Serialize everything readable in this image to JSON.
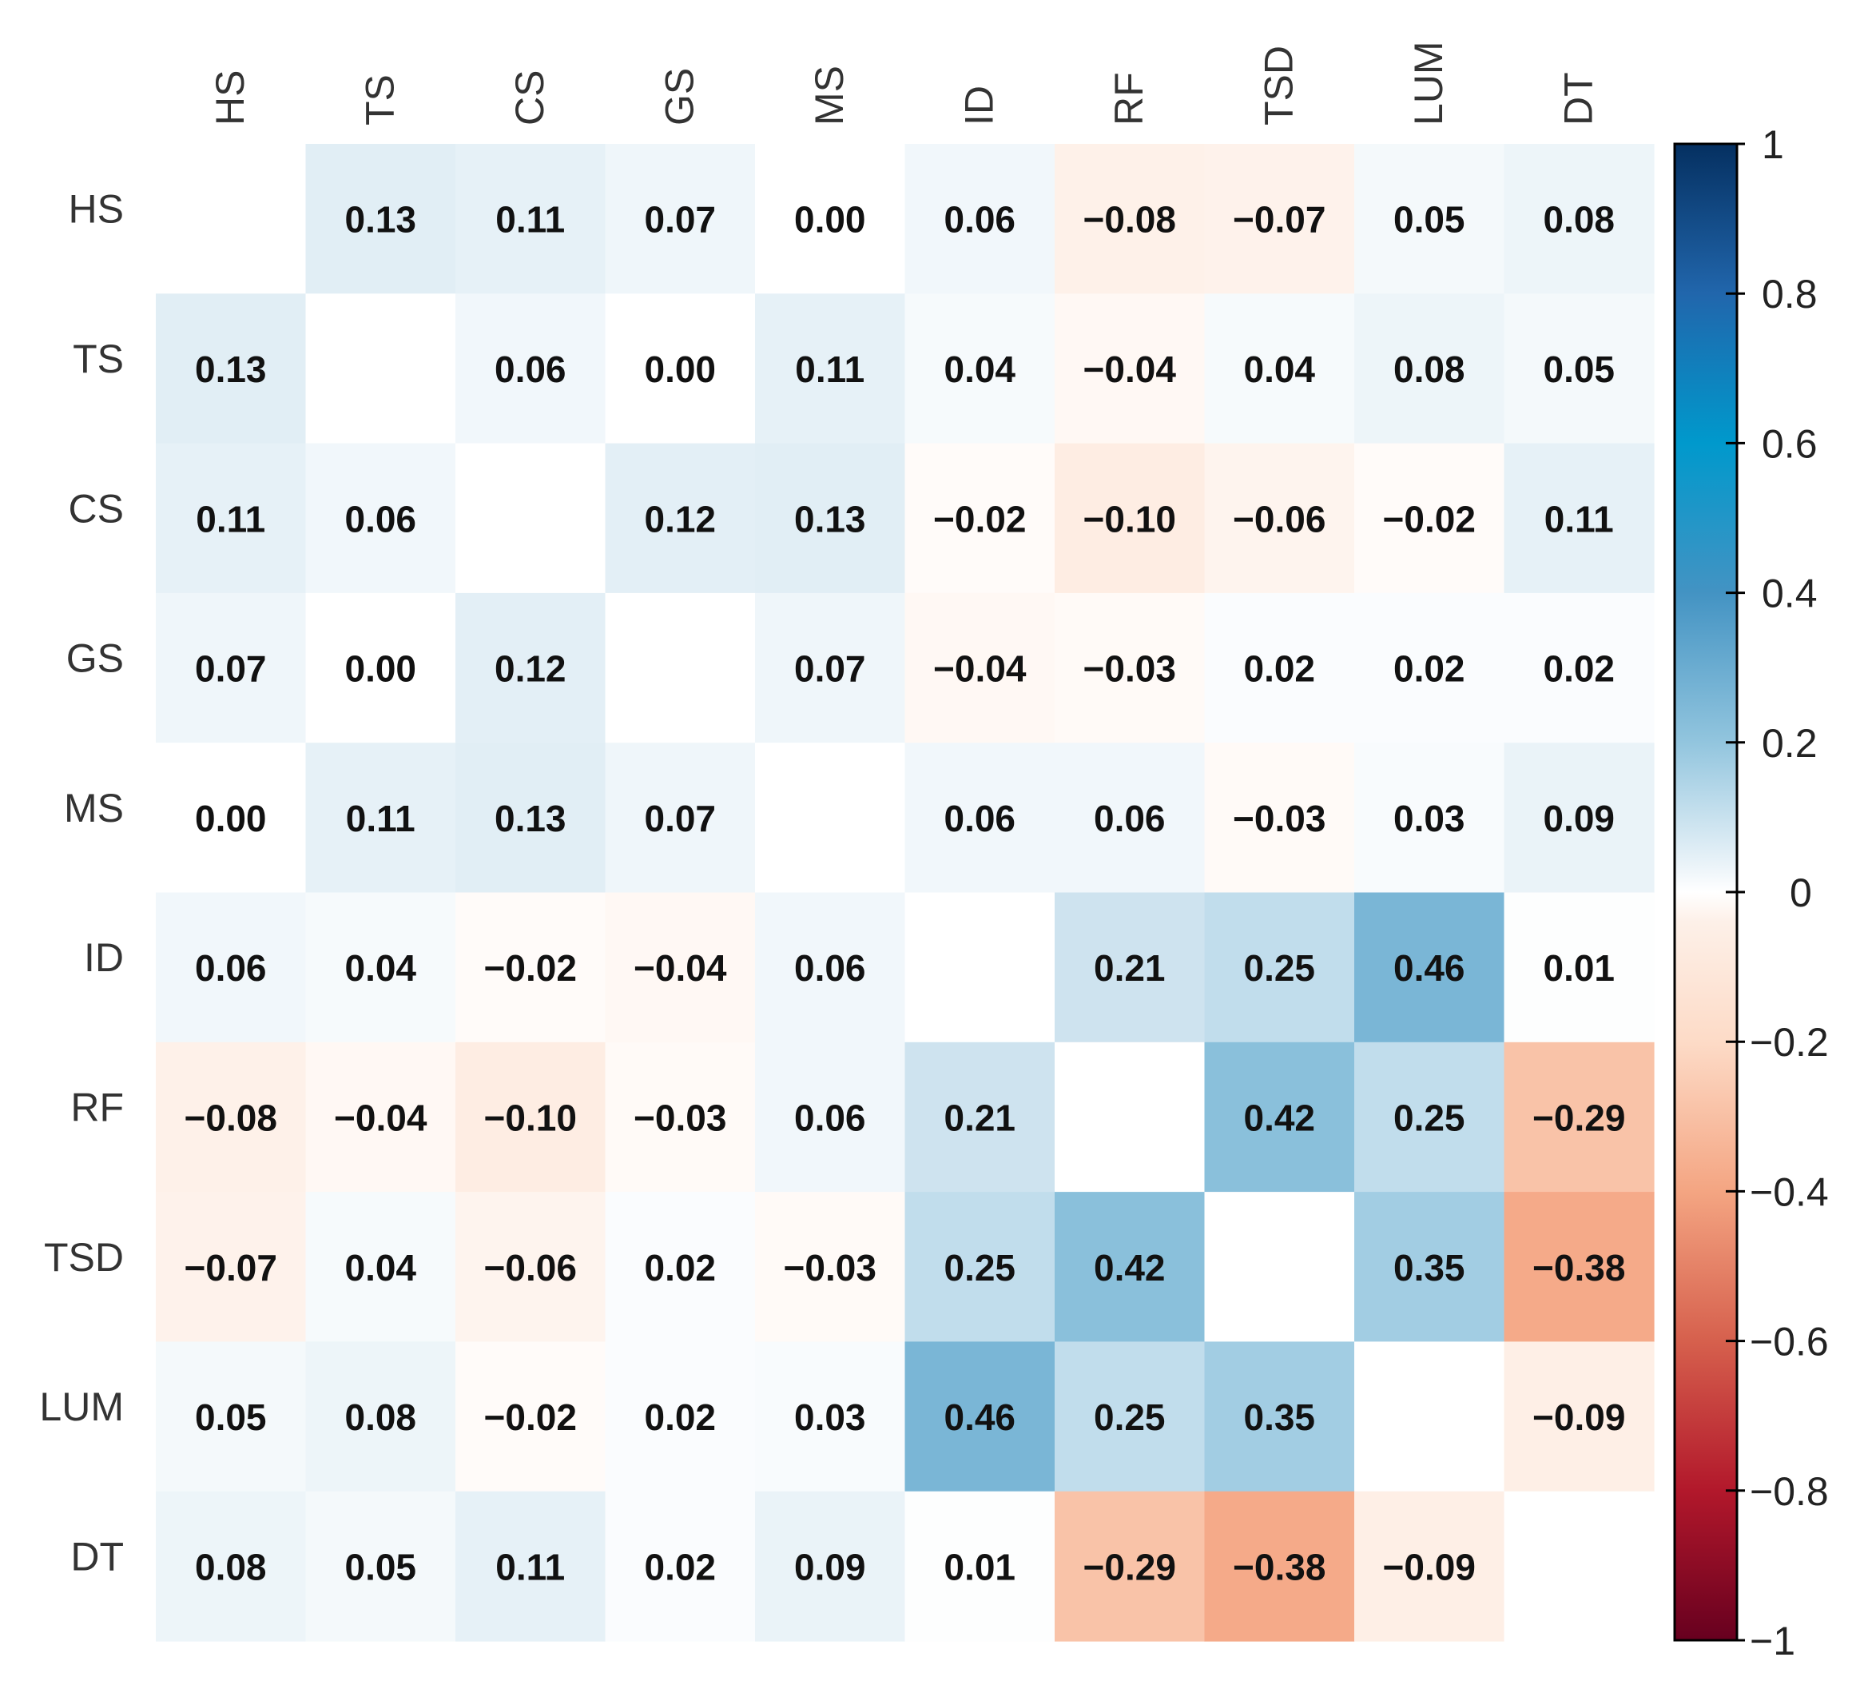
{
  "chart_data": {
    "type": "heatmap",
    "title": "",
    "variables": [
      "HS",
      "TS",
      "CS",
      "GS",
      "MS",
      "ID",
      "RF",
      "TSD",
      "LUM",
      "DT"
    ],
    "matrix": [
      [
        null,
        0.13,
        0.11,
        0.07,
        0.0,
        0.06,
        -0.08,
        -0.07,
        0.05,
        0.08
      ],
      [
        0.13,
        null,
        0.06,
        0.0,
        0.11,
        0.04,
        -0.04,
        0.04,
        0.08,
        0.05
      ],
      [
        0.11,
        0.06,
        null,
        0.12,
        0.13,
        -0.02,
        -0.1,
        -0.06,
        -0.02,
        0.11
      ],
      [
        0.07,
        0.0,
        0.12,
        null,
        0.07,
        -0.04,
        -0.03,
        0.02,
        0.02,
        0.02
      ],
      [
        0.0,
        0.11,
        0.13,
        0.07,
        null,
        0.06,
        0.06,
        -0.03,
        0.03,
        0.09
      ],
      [
        0.06,
        0.04,
        -0.02,
        -0.04,
        0.06,
        null,
        0.21,
        0.25,
        0.46,
        0.01
      ],
      [
        -0.08,
        -0.04,
        -0.1,
        -0.03,
        0.06,
        0.21,
        null,
        0.42,
        0.25,
        -0.29
      ],
      [
        -0.07,
        0.04,
        -0.06,
        0.02,
        -0.03,
        0.25,
        0.42,
        null,
        0.35,
        -0.38
      ],
      [
        0.05,
        0.08,
        -0.02,
        0.02,
        0.03,
        0.46,
        0.25,
        0.35,
        null,
        -0.09
      ],
      [
        0.08,
        0.05,
        0.11,
        0.02,
        0.09,
        0.01,
        -0.29,
        -0.38,
        -0.09,
        null
      ]
    ],
    "value_range": [
      -1,
      1
    ],
    "colorbar": {
      "ticks": [
        1,
        0.8,
        0.6,
        0.4,
        0.2,
        0,
        -0.2,
        -0.4,
        -0.6,
        -0.8,
        -1
      ],
      "tick_labels": [
        "1",
        "0.8",
        "0.6",
        "0.4",
        "0.2",
        "0",
        "−0.2",
        "−0.4",
        "−0.6",
        "−0.8",
        "−1"
      ],
      "placement": "right"
    },
    "colors": {
      "strong_negative": "#67001f",
      "mid_negative": "#d6604d",
      "light_negative": "#fddbc7",
      "neutral": "#ffffff",
      "light_positive": "#d1e5f0",
      "mid_positive": "#4393c3",
      "strong_positive": "#053061"
    }
  }
}
